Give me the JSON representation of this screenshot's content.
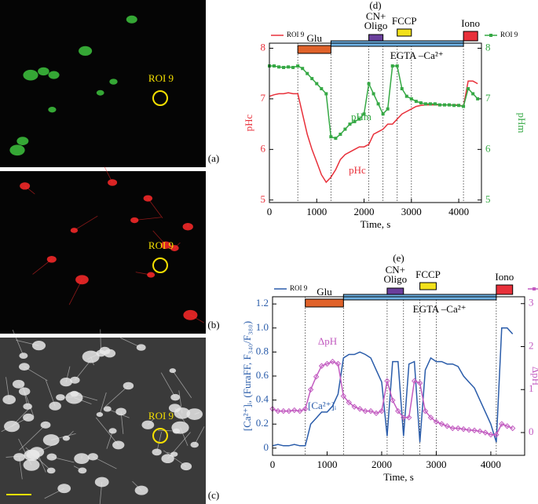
{
  "images": [
    {
      "label": "(a)",
      "roi": "ROI 9"
    },
    {
      "label": "(b)",
      "roi": "ROI 9"
    },
    {
      "label": "(c)",
      "roi": "ROI 9"
    }
  ],
  "chart_data": [
    {
      "type": "line",
      "title": "(d)",
      "xlabel": "Time, s",
      "ylabel": "pHc",
      "y2label": "pHm",
      "xlim": [
        0,
        4480
      ],
      "xticks": [
        0,
        1000,
        2000,
        3000,
        4000
      ],
      "ylim": [
        4.95,
        8.1
      ],
      "yticks": [
        5,
        6,
        7,
        8
      ],
      "y2lim": [
        4.95,
        8.1
      ],
      "y2ticks": [
        5,
        6,
        7,
        8
      ],
      "x": [
        0,
        100,
        200,
        300,
        400,
        500,
        600,
        700,
        800,
        900,
        1000,
        1100,
        1200,
        1300,
        1400,
        1500,
        1600,
        1700,
        1800,
        1900,
        2000,
        2100,
        2200,
        2300,
        2400,
        2500,
        2600,
        2700,
        2800,
        2900,
        3000,
        3100,
        3200,
        3300,
        3400,
        3500,
        3600,
        3700,
        3800,
        3900,
        4000,
        4100,
        4200,
        4300,
        4400
      ],
      "series": [
        {
          "name": "ROI 9",
          "color": "#e8303a",
          "values": [
            7.05,
            7.08,
            7.1,
            7.1,
            7.12,
            7.1,
            7.1,
            6.7,
            6.3,
            6.0,
            5.75,
            5.5,
            5.35,
            5.45,
            5.6,
            5.8,
            5.9,
            5.95,
            6.0,
            6.05,
            6.05,
            6.1,
            6.3,
            6.35,
            6.4,
            6.5,
            6.5,
            6.6,
            6.7,
            6.75,
            6.8,
            6.85,
            6.87,
            6.88,
            6.88,
            6.88,
            6.88,
            6.88,
            6.88,
            6.88,
            6.88,
            6.85,
            7.35,
            7.35,
            7.3
          ]
        },
        {
          "name": "ROI 9",
          "color": "#35a844",
          "axis": "y2",
          "marker": "square",
          "values": [
            7.65,
            7.65,
            7.63,
            7.62,
            7.63,
            7.62,
            7.65,
            7.6,
            7.5,
            7.4,
            7.3,
            7.2,
            7.1,
            6.25,
            6.22,
            6.3,
            6.4,
            6.5,
            6.55,
            6.6,
            6.7,
            7.3,
            7.1,
            6.9,
            6.7,
            6.8,
            7.65,
            7.65,
            7.2,
            7.05,
            7.0,
            6.95,
            6.92,
            6.9,
            6.9,
            6.9,
            6.88,
            6.88,
            6.88,
            6.87,
            6.87,
            6.85,
            7.2,
            7.1,
            7.0
          ]
        }
      ],
      "bars": [
        {
          "label": "Glu",
          "start": 600,
          "end": 1300,
          "color": "#e0622a"
        },
        {
          "label": "EGTA –Ca²⁺",
          "start": 1300,
          "end": 4100,
          "color": "#6fb3e6"
        },
        {
          "label": [
            "CN+",
            "Oligo"
          ],
          "start": 2100,
          "end": 2400,
          "color": "#6a3f9c"
        },
        {
          "label": "FCCP",
          "start": 2700,
          "end": 3000,
          "color": "#f2e11a"
        },
        {
          "label": "Iono",
          "start": 4100,
          "end": 4400,
          "color": "#e8303a"
        }
      ],
      "vlines": [
        600,
        1300,
        2100,
        2400,
        2700,
        3000,
        4100
      ],
      "annotations": [
        {
          "text": "pHm",
          "color": "#35a844"
        },
        {
          "text": "pHc",
          "color": "#e8303a"
        }
      ]
    },
    {
      "type": "line",
      "title": "(e)",
      "xlabel": "Time, s",
      "ylabel": "[Ca²⁺]ᵢ, (FuraFF, F₃₄₀/F₃₈₀)",
      "y2label": "ΔpH",
      "xlim": [
        0,
        4620
      ],
      "xticks": [
        0,
        1000,
        2000,
        3000,
        4000
      ],
      "ylim": [
        -0.06,
        1.26
      ],
      "yticks": [
        0,
        0.2,
        0.4,
        0.6,
        0.8,
        {
          "value": 1,
          "label": "1.0"
        },
        1.2
      ],
      "y2lim": [
        -0.53,
        3.16
      ],
      "y2ticks": [
        0,
        1,
        2,
        3
      ],
      "x": [
        0,
        100,
        200,
        300,
        400,
        500,
        600,
        700,
        800,
        900,
        1000,
        1100,
        1200,
        1300,
        1400,
        1500,
        1600,
        1700,
        1800,
        1900,
        2000,
        2100,
        2200,
        2300,
        2400,
        2500,
        2600,
        2700,
        2800,
        2900,
        3000,
        3100,
        3200,
        3300,
        3400,
        3500,
        3600,
        3700,
        3800,
        3900,
        4000,
        4100,
        4200,
        4300,
        4400
      ],
      "series": [
        {
          "name": "ROI 9",
          "color": "#2a5caa",
          "values": [
            0.02,
            0.03,
            0.02,
            0.02,
            0.03,
            0.02,
            0.02,
            0.2,
            0.25,
            0.3,
            0.3,
            0.35,
            0.45,
            0.75,
            0.78,
            0.78,
            0.8,
            0.78,
            0.75,
            0.65,
            0.55,
            0.1,
            0.72,
            0.72,
            0.1,
            0.7,
            0.72,
            0.05,
            0.65,
            0.75,
            0.72,
            0.72,
            0.7,
            0.7,
            0.68,
            0.6,
            0.55,
            0.5,
            0.4,
            0.3,
            0.2,
            0.05,
            1.0,
            1.0,
            0.95
          ]
        },
        {
          "name": "ROI 9",
          "color": "#c25bc0",
          "axis": "y2",
          "marker": "diamond",
          "values": [
            0.55,
            0.5,
            0.5,
            0.5,
            0.52,
            0.5,
            0.55,
            1.0,
            1.3,
            1.55,
            1.6,
            1.65,
            1.6,
            0.85,
            0.7,
            0.6,
            0.55,
            0.5,
            0.5,
            0.45,
            0.5,
            1.2,
            0.75,
            0.5,
            0.35,
            0.35,
            1.2,
            1.15,
            0.5,
            0.35,
            0.25,
            0.2,
            0.15,
            0.1,
            0.1,
            0.08,
            0.06,
            0.05,
            0.03,
            0.0,
            -0.05,
            -0.05,
            0.2,
            0.15,
            0.1
          ]
        }
      ],
      "bars": [
        {
          "label": "Glu",
          "start": 600,
          "end": 1300,
          "color": "#e0622a"
        },
        {
          "label": "EGTA –Ca²⁺",
          "start": 1300,
          "end": 4100,
          "color": "#6fb3e6"
        },
        {
          "label": [
            "CN+",
            "Oligo"
          ],
          "start": 2100,
          "end": 2400,
          "color": "#6a3f9c"
        },
        {
          "label": "FCCP",
          "start": 2700,
          "end": 3000,
          "color": "#f2e11a"
        },
        {
          "label": "Iono",
          "start": 4100,
          "end": 4400,
          "color": "#e8303a"
        }
      ],
      "vlines": [
        600,
        1300,
        2100,
        2400,
        2700,
        3000,
        4100
      ],
      "annotations": [
        {
          "text": "ΔpH",
          "color": "#c25bc0"
        },
        {
          "text": "[Ca²⁺]ᵢ",
          "color": "#2a5caa"
        }
      ]
    }
  ]
}
